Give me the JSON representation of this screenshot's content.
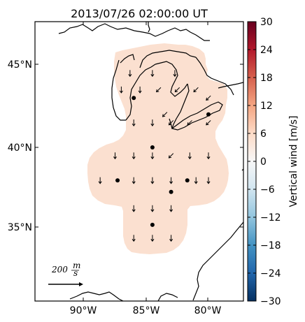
{
  "map": {
    "title": "2013/07/26 02:00:00 UT",
    "lat_ticks": [
      "45°N",
      "40°N",
      "35°N"
    ],
    "lon_ticks": [
      "90°W",
      "85°W",
      "80°W"
    ],
    "scale_label": "200",
    "scale_units": {
      "numerator": "m",
      "denominator": "s"
    },
    "coverage_color": "#fbe0d0",
    "coast_color": "#000000"
  },
  "colorbar": {
    "label": "Vertical wind [m/s]",
    "min": -30,
    "max": 30,
    "ticks": [
      "30",
      "24",
      "18",
      "12",
      "6",
      "0",
      "−6",
      "−12",
      "−18",
      "−24",
      "−30"
    ],
    "colors": [
      "#67001f",
      "#b2182b",
      "#d6604d",
      "#f4a582",
      "#fddbc7",
      "#f7f7f7",
      "#d1e5f0",
      "#92c5de",
      "#4393c3",
      "#2166ac",
      "#053061"
    ]
  },
  "stations": [
    {
      "lon": -86.0,
      "lat": 43.0
    },
    {
      "lon": -80.0,
      "lat": 42.0
    },
    {
      "lon": -84.5,
      "lat": 40.0
    },
    {
      "lon": -87.3,
      "lat": 38.0
    },
    {
      "lon": -83.0,
      "lat": 37.3
    },
    {
      "lon": -81.7,
      "lat": 38.0
    },
    {
      "lon": -84.5,
      "lat": 35.3
    }
  ],
  "wind_vectors": [
    {
      "lon": -86.3,
      "lat": 44.5,
      "dir": "down"
    },
    {
      "lon": -84.5,
      "lat": 44.5,
      "dir": "down"
    },
    {
      "lon": -82.7,
      "lat": 44.5,
      "dir": "down"
    },
    {
      "lon": -87.0,
      "lat": 43.5,
      "dir": "down"
    },
    {
      "lon": -85.5,
      "lat": 43.5,
      "dir": "down"
    },
    {
      "lon": -84.0,
      "lat": 43.5,
      "dir": "downleft"
    },
    {
      "lon": -82.5,
      "lat": 43.5,
      "dir": "downleft"
    },
    {
      "lon": -81.0,
      "lat": 43.5,
      "dir": "downleft"
    },
    {
      "lon": -80.0,
      "lat": 43.0,
      "dir": "downleft"
    },
    {
      "lon": -83.5,
      "lat": 42.0,
      "dir": "downleft"
    },
    {
      "lon": -86.0,
      "lat": 41.5,
      "dir": "down"
    },
    {
      "lon": -84.5,
      "lat": 41.5,
      "dir": "down"
    },
    {
      "lon": -83.0,
      "lat": 41.5,
      "dir": "downleft"
    },
    {
      "lon": -81.5,
      "lat": 41.5,
      "dir": "downleft"
    },
    {
      "lon": -80.0,
      "lat": 41.5,
      "dir": "downleft"
    },
    {
      "lon": -87.5,
      "lat": 39.5,
      "dir": "down"
    },
    {
      "lon": -86.0,
      "lat": 39.5,
      "dir": "down"
    },
    {
      "lon": -84.5,
      "lat": 39.5,
      "dir": "down"
    },
    {
      "lon": -83.0,
      "lat": 39.5,
      "dir": "downleft"
    },
    {
      "lon": -81.5,
      "lat": 39.5,
      "dir": "down"
    },
    {
      "lon": -80.0,
      "lat": 39.5,
      "dir": "down"
    },
    {
      "lon": -88.7,
      "lat": 38.0,
      "dir": "down"
    },
    {
      "lon": -86.0,
      "lat": 38.0,
      "dir": "down"
    },
    {
      "lon": -84.5,
      "lat": 38.0,
      "dir": "down"
    },
    {
      "lon": -83.0,
      "lat": 38.0,
      "dir": "down"
    },
    {
      "lon": -81.0,
      "lat": 38.0,
      "dir": "down"
    },
    {
      "lon": -80.0,
      "lat": 38.0,
      "dir": "down"
    },
    {
      "lon": -86.0,
      "lat": 36.3,
      "dir": "down"
    },
    {
      "lon": -84.5,
      "lat": 36.3,
      "dir": "down"
    },
    {
      "lon": -83.0,
      "lat": 36.3,
      "dir": "down"
    },
    {
      "lon": -86.0,
      "lat": 34.5,
      "dir": "down"
    },
    {
      "lon": -84.5,
      "lat": 34.5,
      "dir": "down"
    },
    {
      "lon": -83.0,
      "lat": 34.5,
      "dir": "down"
    }
  ]
}
